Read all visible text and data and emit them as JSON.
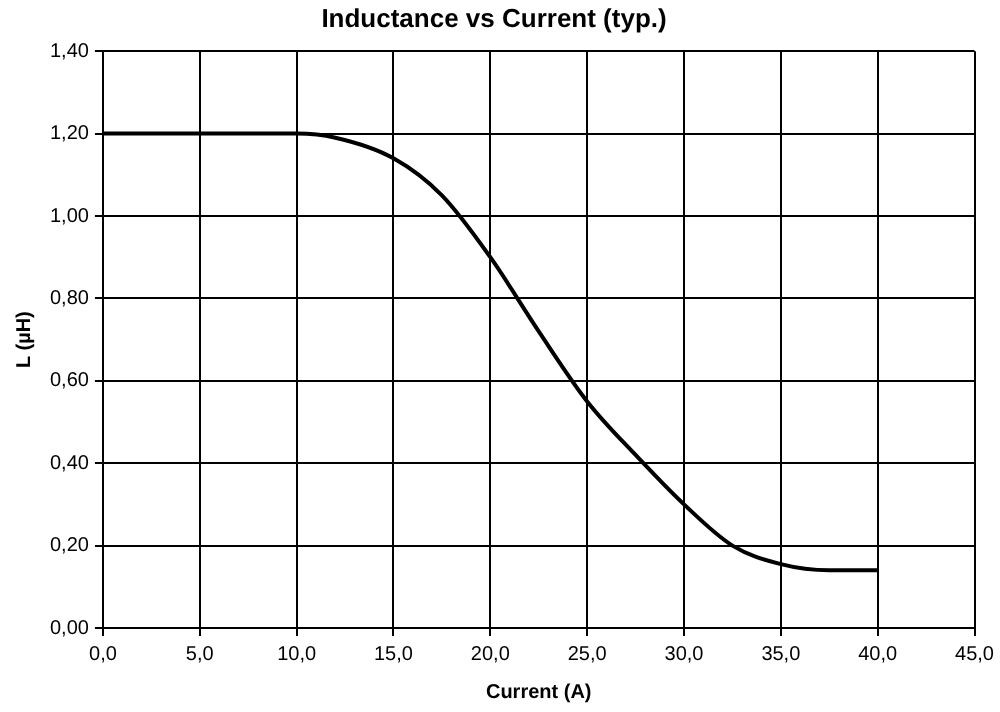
{
  "chart_data": {
    "type": "line",
    "title": "Inductance vs Current (typ.)",
    "xlabel": "Current (A)",
    "ylabel": "L (µH)",
    "x": [
      0,
      4,
      7,
      10,
      12,
      15,
      17.5,
      20,
      22.5,
      25,
      27.5,
      30,
      32.5,
      35,
      37.5,
      40
    ],
    "series": [
      {
        "color": "#000000",
        "values": [
          1.2,
          1.2,
          1.2,
          1.2,
          1.19,
          1.14,
          1.05,
          0.9,
          0.72,
          0.55,
          0.42,
          0.3,
          0.2,
          0.155,
          0.14,
          0.14
        ]
      }
    ],
    "xlim": [
      0,
      45
    ],
    "xticks": [
      {
        "value": 0,
        "label": "0,0"
      },
      {
        "value": 5,
        "label": "5,0"
      },
      {
        "value": 10,
        "label": "10,0"
      },
      {
        "value": 15,
        "label": "15,0"
      },
      {
        "value": 20,
        "label": "20,0"
      },
      {
        "value": 25,
        "label": "25,0"
      },
      {
        "value": 30,
        "label": "30,0"
      },
      {
        "value": 35,
        "label": "35,0"
      },
      {
        "value": 40,
        "label": "40,0"
      },
      {
        "value": 45,
        "label": "45,0"
      }
    ],
    "ylim": [
      0,
      1.4
    ],
    "yticks": [
      {
        "value": 0,
        "label": "0,00"
      },
      {
        "value": 0.2,
        "label": "0,20"
      },
      {
        "value": 0.4,
        "label": "0,40"
      },
      {
        "value": 0.6,
        "label": "0,60"
      },
      {
        "value": 0.8,
        "label": "0,80"
      },
      {
        "value": 1,
        "label": "1,00"
      },
      {
        "value": 1.2,
        "label": "1,20"
      },
      {
        "value": 1.4,
        "label": "1,40"
      }
    ],
    "grid": true,
    "legend": false,
    "marker": "none",
    "line_style": "solid"
  }
}
